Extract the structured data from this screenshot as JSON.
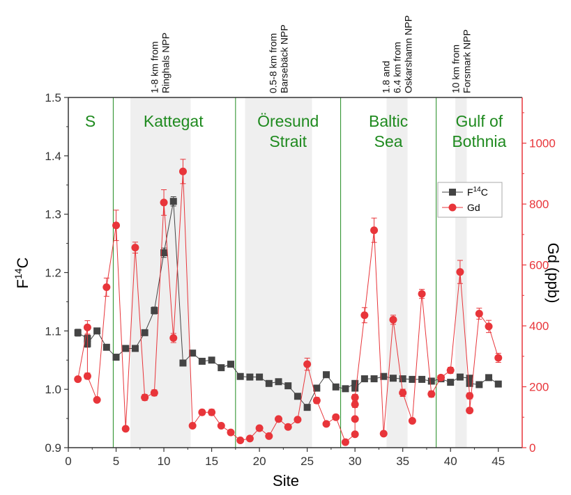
{
  "chart_data": {
    "type": "scatter",
    "title": "",
    "xlabel": "Site",
    "ylabel_left_prefix": "F",
    "ylabel_left_sup": "14",
    "ylabel_left_suffix": "C",
    "ylabel_right": "Gd (ppb)",
    "xlim": [
      0,
      47.5
    ],
    "ylim_left": [
      0.9,
      1.5
    ],
    "ylim_right": [
      0,
      1150
    ],
    "x_ticks": [
      "0",
      "5",
      "10",
      "15",
      "20",
      "25",
      "30",
      "35",
      "40",
      "45"
    ],
    "y_left_ticks": [
      "0.9",
      "1.0",
      "1.1",
      "1.2",
      "1.3",
      "1.4",
      "1.5"
    ],
    "y_right_ticks": [
      "0",
      "200",
      "400",
      "600",
      "800",
      "1000"
    ],
    "colors": {
      "f14c": "#444444",
      "gd": "#e8353a",
      "region_text": "#1f8a1f",
      "divider": "#1f8a1f",
      "shade": "#efefef"
    },
    "region_labels": [
      {
        "lines": [
          "S"
        ],
        "x": 2.3
      },
      {
        "lines": [
          "Kattegat"
        ],
        "x": 11
      },
      {
        "lines": [
          "Öresund",
          "Strait"
        ],
        "x": 23
      },
      {
        "lines": [
          "Baltic",
          "Sea"
        ],
        "x": 33.5
      },
      {
        "lines": [
          "Gulf of",
          "Bothnia"
        ],
        "x": 43
      }
    ],
    "dividers_x": [
      4.7,
      17.5,
      28.5,
      38.5
    ],
    "shaded_ranges": [
      [
        6.5,
        12.8
      ],
      [
        18.5,
        25.5
      ],
      [
        33.3,
        35.5
      ],
      [
        40.5,
        41.7
      ]
    ],
    "npp_labels": [
      {
        "lines": [
          "1-8 km from",
          "Ringhals NPP"
        ],
        "x": 9.6
      },
      {
        "lines": [
          "0.5-8 km from",
          "Barsebäck NPP"
        ],
        "x": 22.0
      },
      {
        "lines": [
          "1.8 and",
          "6.4 km from",
          "Oskarshamn NPP"
        ],
        "x": 34.4
      },
      {
        "lines": [
          "10 km from",
          "Forsmark NPP"
        ],
        "x": 41.1
      }
    ],
    "legend": {
      "f14c_prefix": "F",
      "f14c_sup": "14",
      "f14c_suffix": "C",
      "gd": "Gd"
    },
    "series": [
      {
        "key": "f14c",
        "axis": "left",
        "points": [
          [
            1,
            1.097,
            0.006
          ],
          [
            2,
            1.087,
            0.006
          ],
          [
            2,
            1.078,
            0.006
          ],
          [
            3,
            1.1,
            0.004
          ],
          [
            4,
            1.072,
            0.004
          ],
          [
            5,
            1.055,
            0.004
          ],
          [
            6,
            1.07,
            0.004
          ],
          [
            7,
            1.07,
            0.004
          ],
          [
            8,
            1.097,
            0.004
          ],
          [
            9,
            1.135,
            0.006
          ],
          [
            10,
            1.234,
            0.008
          ],
          [
            11,
            1.322,
            0.008
          ],
          [
            12,
            1.045,
            0.004
          ],
          [
            13,
            1.062,
            0.004
          ],
          [
            14,
            1.048,
            0.004
          ],
          [
            15,
            1.05,
            0.004
          ],
          [
            16,
            1.037,
            0.004
          ],
          [
            17,
            1.043,
            0.004
          ],
          [
            18,
            1.022,
            0.004
          ],
          [
            19,
            1.021,
            0.004
          ],
          [
            20,
            1.021,
            0.004
          ],
          [
            21,
            1.01,
            0.004
          ],
          [
            22,
            1.013,
            0.004
          ],
          [
            23,
            1.006,
            0.004
          ],
          [
            24,
            0.988,
            0.004
          ],
          [
            25,
            0.969,
            0.004
          ],
          [
            26,
            1.002,
            0.004
          ],
          [
            27,
            1.025,
            0.004
          ],
          [
            28,
            1.004,
            0.004
          ],
          [
            29,
            1.001,
            0.004
          ],
          [
            30,
            1.01,
            0.004
          ],
          [
            30,
            1.002,
            0.004
          ],
          [
            31,
            1.018,
            0.004
          ],
          [
            32,
            1.018,
            0.004
          ],
          [
            33,
            1.022,
            0.004
          ],
          [
            34,
            1.019,
            0.004
          ],
          [
            35,
            1.018,
            0.004
          ],
          [
            36,
            1.017,
            0.004
          ],
          [
            37,
            1.017,
            0.004
          ],
          [
            38,
            1.014,
            0.004
          ],
          [
            39,
            1.018,
            0.004
          ],
          [
            40,
            1.012,
            0.004
          ],
          [
            41,
            1.021,
            0.004
          ],
          [
            42,
            1.019,
            0.004
          ],
          [
            42,
            1.01,
            0.004
          ],
          [
            43,
            1.008,
            0.004
          ],
          [
            44,
            1.02,
            0.004
          ],
          [
            45,
            1.009,
            0.004
          ]
        ]
      },
      {
        "key": "gd",
        "axis": "right",
        "points": [
          [
            1,
            225,
            8
          ],
          [
            2,
            395,
            22
          ],
          [
            2,
            235,
            10
          ],
          [
            3,
            157,
            6
          ],
          [
            4,
            527,
            30
          ],
          [
            5,
            730,
            50
          ],
          [
            6,
            62,
            5
          ],
          [
            7,
            657,
            18
          ],
          [
            8,
            165,
            10
          ],
          [
            9,
            180,
            10
          ],
          [
            10,
            805,
            42
          ],
          [
            11,
            360,
            15
          ],
          [
            12,
            907,
            40
          ],
          [
            13,
            72,
            5
          ],
          [
            14,
            116,
            8
          ],
          [
            15,
            116,
            10
          ],
          [
            16,
            72,
            5
          ],
          [
            17,
            50,
            5
          ],
          [
            18,
            24,
            5
          ],
          [
            19,
            30,
            5
          ],
          [
            20,
            64,
            5
          ],
          [
            21,
            38,
            5
          ],
          [
            22,
            94,
            5
          ],
          [
            23,
            68,
            5
          ],
          [
            24,
            92,
            5
          ],
          [
            25,
            274,
            20
          ],
          [
            26,
            155,
            10
          ],
          [
            27,
            78,
            5
          ],
          [
            28,
            100,
            8
          ],
          [
            29,
            18,
            5
          ],
          [
            30,
            44,
            5
          ],
          [
            30,
            94,
            8
          ],
          [
            30,
            142,
            10
          ],
          [
            30,
            165,
            10
          ],
          [
            31,
            435,
            25
          ],
          [
            32,
            714,
            40
          ],
          [
            33,
            46,
            5
          ],
          [
            34,
            420,
            15
          ],
          [
            35,
            180,
            12
          ],
          [
            36,
            88,
            5
          ],
          [
            37,
            505,
            15
          ],
          [
            38,
            176,
            10
          ],
          [
            39,
            230,
            8
          ],
          [
            40,
            254,
            10
          ],
          [
            41,
            577,
            38
          ],
          [
            42,
            170,
            10
          ],
          [
            42,
            122,
            8
          ],
          [
            43,
            440,
            18
          ],
          [
            44,
            398,
            20
          ],
          [
            45,
            295,
            15
          ]
        ]
      }
    ]
  }
}
